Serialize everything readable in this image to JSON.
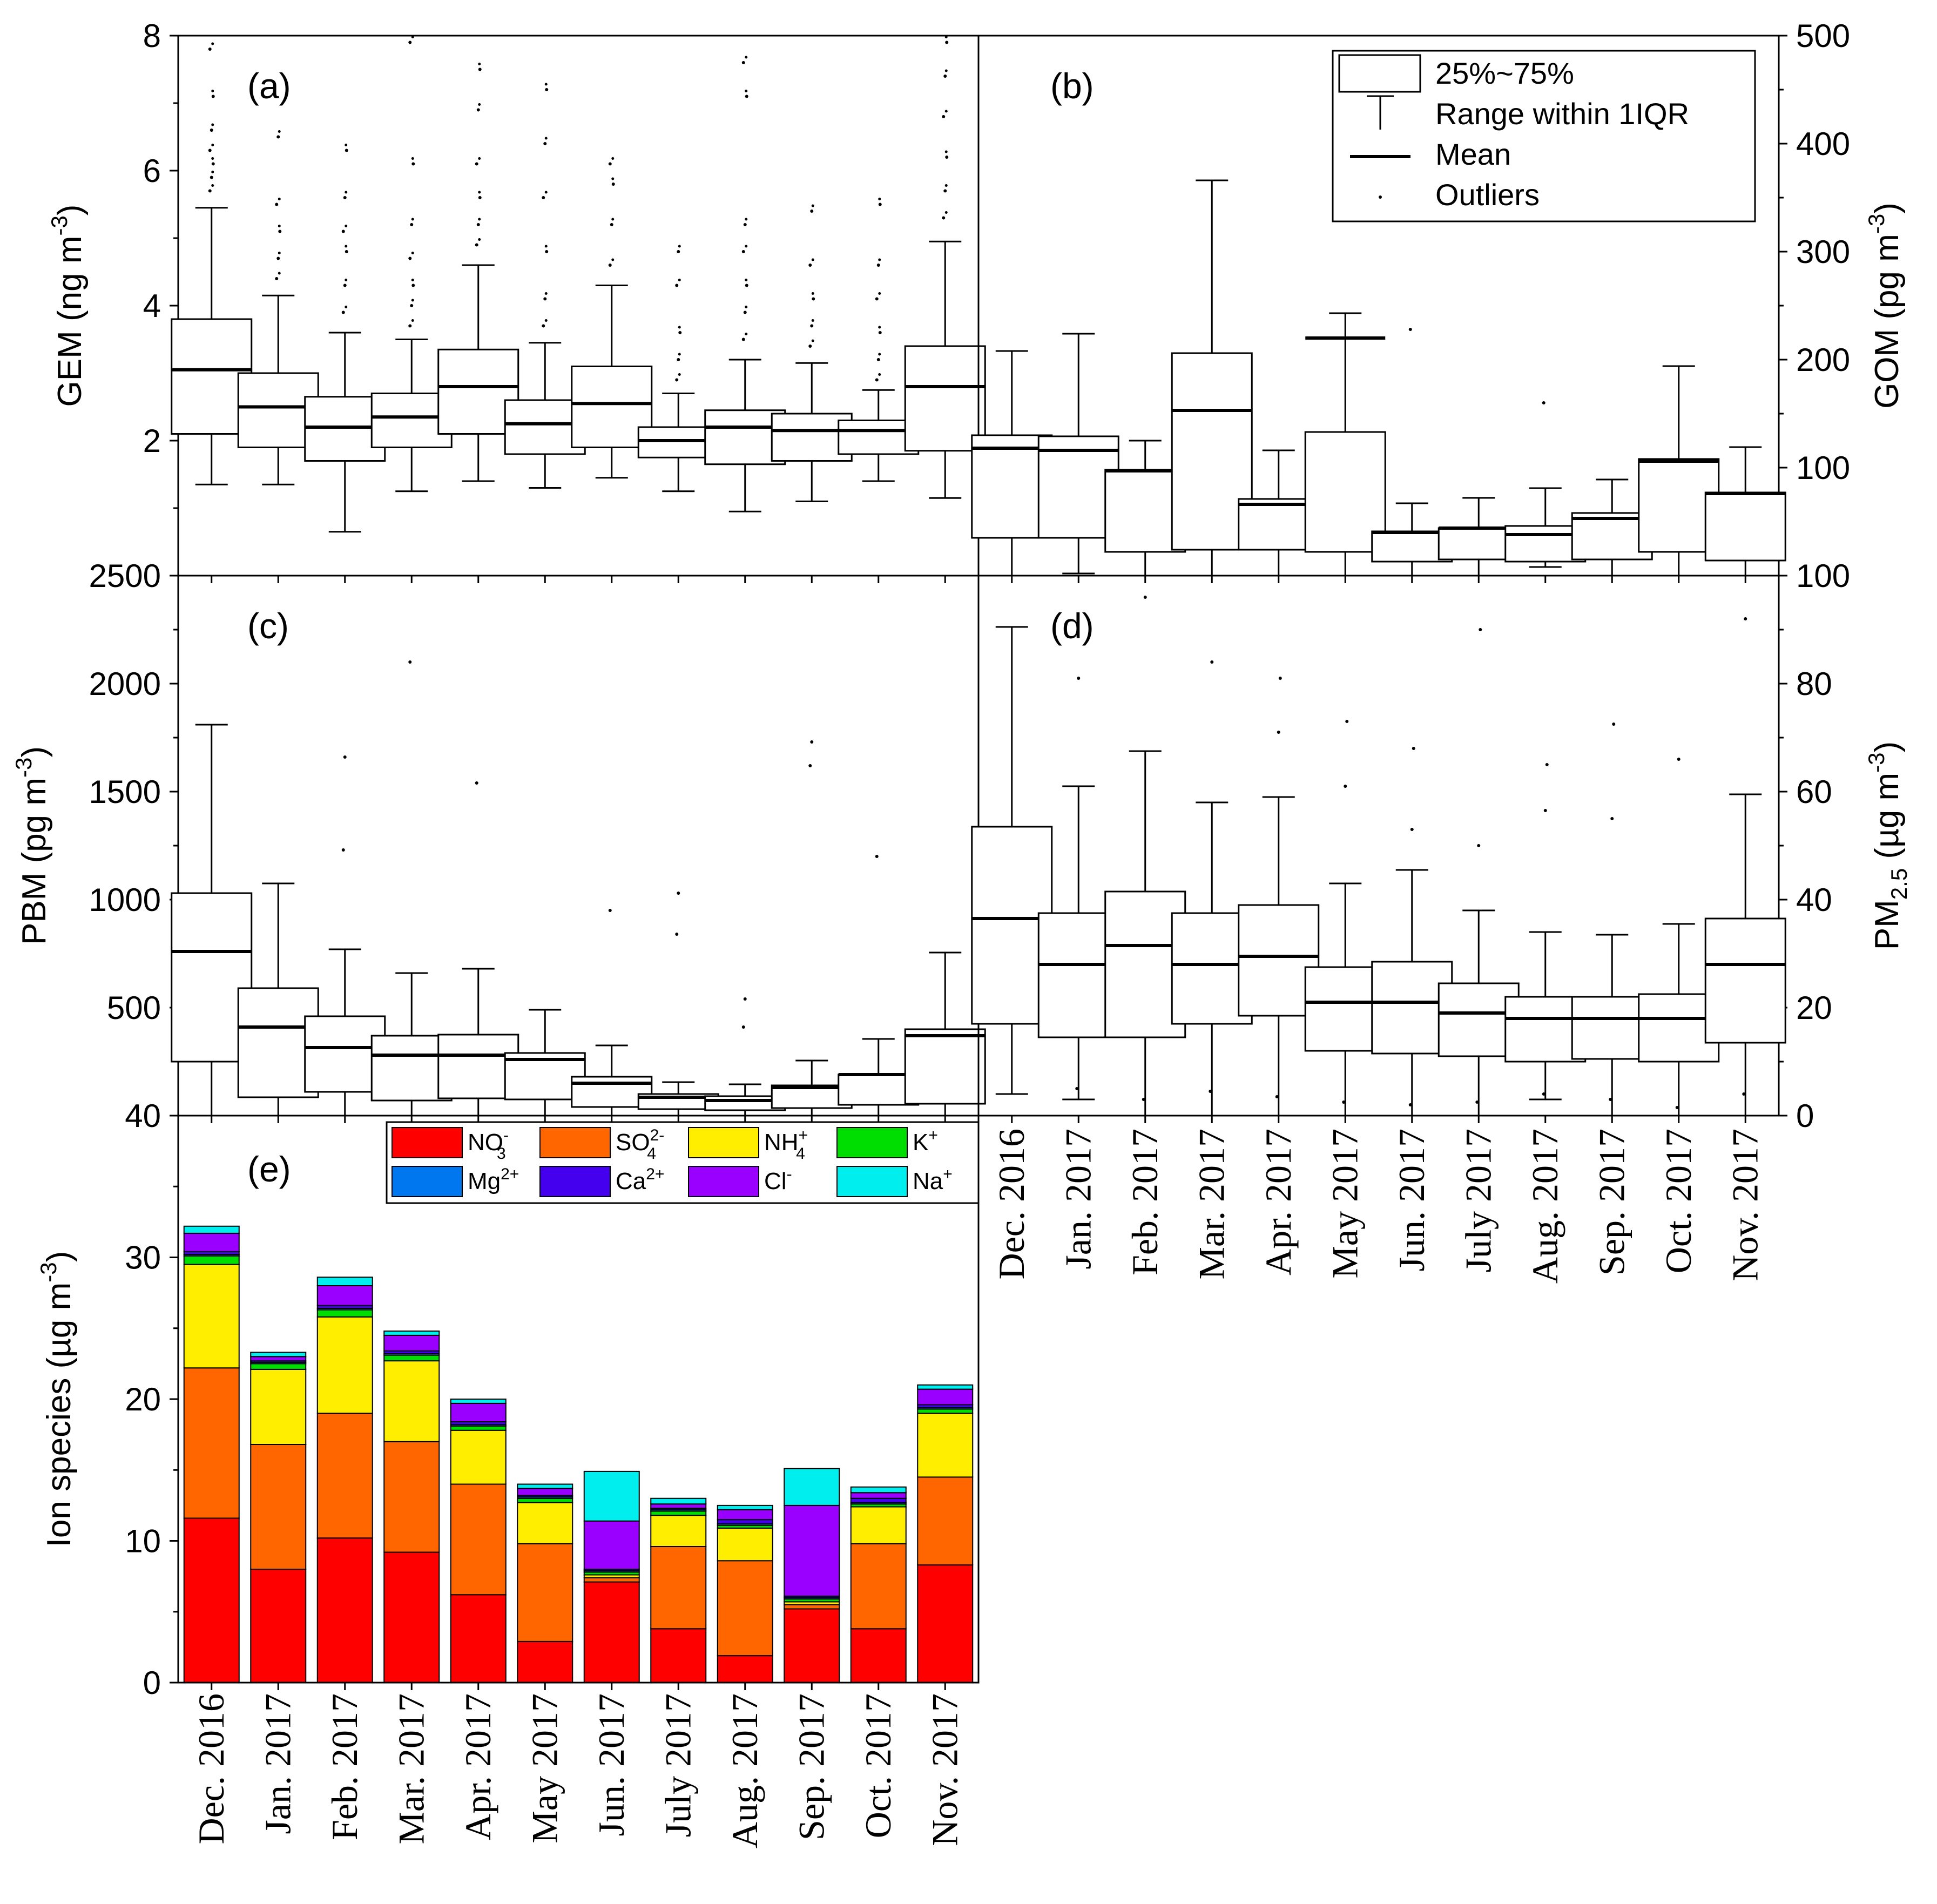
{
  "months": [
    "Dec. 2016",
    "Jan. 2017",
    "Feb. 2017",
    "Mar. 2017",
    "Apr. 2017",
    "May 2017",
    "Jun. 2017",
    "July 2017",
    "Aug. 2017",
    "Sep. 2017",
    "Oct. 2017",
    "Nov. 2017"
  ],
  "legend_box": {
    "box": "25%~75%",
    "whisker": "Range within 1IQR",
    "mean": "Mean",
    "outliers": "Outliers"
  },
  "chart_data": [
    {
      "id": "a",
      "type": "box",
      "panel_label": "(a)",
      "ylabel": "GEM (ng m",
      "ylabel_sup": "-3",
      "ylabel_tail": ")",
      "ylim": [
        0,
        8
      ],
      "yticks": [
        2,
        4,
        6,
        8
      ],
      "tick_labels": [
        "2",
        "4",
        "6",
        "8"
      ],
      "boxes": [
        {
          "q1": 2.1,
          "q3": 3.8,
          "mean": 3.05,
          "lo": 1.35,
          "hi": 5.45,
          "out": [
            5.7,
            5.9,
            6.1,
            6.3,
            6.6,
            7.1,
            7.8
          ]
        },
        {
          "q1": 1.9,
          "q3": 3.0,
          "mean": 2.5,
          "lo": 1.35,
          "hi": 4.15,
          "out": [
            4.4,
            4.7,
            5.1,
            5.5,
            6.5
          ]
        },
        {
          "q1": 1.7,
          "q3": 2.65,
          "mean": 2.2,
          "lo": 0.65,
          "hi": 3.6,
          "out": [
            3.9,
            4.3,
            4.8,
            5.1,
            5.6,
            6.3
          ]
        },
        {
          "q1": 1.9,
          "q3": 2.7,
          "mean": 2.35,
          "lo": 1.25,
          "hi": 3.5,
          "out": [
            3.7,
            4.0,
            4.3,
            4.7,
            5.2,
            6.1,
            7.9
          ]
        },
        {
          "q1": 2.1,
          "q3": 3.35,
          "mean": 2.8,
          "lo": 1.4,
          "hi": 4.6,
          "out": [
            4.9,
            5.2,
            5.6,
            6.1,
            6.9,
            7.5
          ]
        },
        {
          "q1": 1.8,
          "q3": 2.6,
          "mean": 2.25,
          "lo": 1.3,
          "hi": 3.45,
          "out": [
            3.7,
            4.1,
            4.8,
            5.6,
            6.4,
            7.2
          ]
        },
        {
          "q1": 1.9,
          "q3": 3.1,
          "mean": 2.55,
          "lo": 1.45,
          "hi": 4.3,
          "out": [
            4.6,
            5.2,
            5.8,
            6.1
          ]
        },
        {
          "q1": 1.75,
          "q3": 2.2,
          "mean": 2.0,
          "lo": 1.25,
          "hi": 2.7,
          "out": [
            2.9,
            3.2,
            3.6,
            4.3,
            4.8
          ]
        },
        {
          "q1": 1.65,
          "q3": 2.45,
          "mean": 2.2,
          "lo": 0.95,
          "hi": 3.2,
          "out": [
            3.5,
            3.9,
            4.3,
            4.8,
            5.2,
            7.1,
            7.6
          ]
        },
        {
          "q1": 1.7,
          "q3": 2.4,
          "mean": 2.15,
          "lo": 1.1,
          "hi": 3.15,
          "out": [
            3.4,
            3.7,
            4.1,
            4.6,
            5.4
          ]
        },
        {
          "q1": 1.8,
          "q3": 2.3,
          "mean": 2.15,
          "lo": 1.4,
          "hi": 2.75,
          "out": [
            2.9,
            3.2,
            3.6,
            4.1,
            4.6,
            5.5
          ]
        },
        {
          "q1": 1.85,
          "q3": 3.4,
          "mean": 2.8,
          "lo": 1.15,
          "hi": 4.95,
          "out": [
            5.3,
            5.7,
            6.2,
            6.8,
            7.4,
            7.9
          ]
        }
      ]
    },
    {
      "id": "b",
      "type": "box",
      "panel_label": "(b)",
      "ylabel": "GOM (pg m",
      "ylabel_sup": "-3",
      "ylabel_tail": ")",
      "ylim": [
        0,
        500
      ],
      "yticks": [
        100,
        200,
        300,
        400,
        500
      ],
      "tick_labels": [
        "100",
        "200",
        "300",
        "400",
        "500"
      ],
      "boxes": [
        {
          "q1": 35,
          "q3": 130,
          "mean": 118,
          "lo": 0,
          "hi": 208,
          "out": []
        },
        {
          "q1": 35,
          "q3": 129,
          "mean": 116,
          "lo": 2,
          "hi": 224,
          "out": []
        },
        {
          "q1": 22,
          "q3": 98,
          "mean": 97,
          "lo": 0,
          "hi": 125,
          "out": []
        },
        {
          "q1": 24,
          "q3": 206,
          "mean": 153,
          "lo": 0,
          "hi": 366,
          "out": []
        },
        {
          "q1": 24,
          "q3": 71,
          "mean": 66,
          "lo": 0,
          "hi": 116,
          "out": []
        },
        {
          "q1": 22,
          "q3": 133,
          "mean": 220,
          "lo": 0,
          "hi": 243,
          "out": []
        },
        {
          "q1": 13,
          "q3": 41,
          "mean": 40,
          "lo": 0,
          "hi": 67,
          "out": [
            228
          ]
        },
        {
          "q1": 15,
          "q3": 44,
          "mean": 44,
          "lo": 0,
          "hi": 72,
          "out": []
        },
        {
          "q1": 13,
          "q3": 46,
          "mean": 38,
          "lo": 8,
          "hi": 81,
          "out": [
            160
          ]
        },
        {
          "q1": 15,
          "q3": 58,
          "mean": 53,
          "lo": 0,
          "hi": 89,
          "out": []
        },
        {
          "q1": 22,
          "q3": 108,
          "mean": 106,
          "lo": 0,
          "hi": 194,
          "out": []
        },
        {
          "q1": 14,
          "q3": 77,
          "mean": 76,
          "lo": 0,
          "hi": 119,
          "out": []
        }
      ]
    },
    {
      "id": "c",
      "type": "box",
      "panel_label": "(c)",
      "ylabel": "PBM (pg m",
      "ylabel_sup": "-3",
      "ylabel_tail": ")",
      "ylim": [
        0,
        2500
      ],
      "yticks": [
        500,
        1000,
        1500,
        2000,
        2500
      ],
      "tick_labels": [
        "500",
        "1000",
        "1500",
        "2000",
        "2500"
      ],
      "boxes": [
        {
          "q1": 250,
          "q3": 1030,
          "mean": 760,
          "lo": 0,
          "hi": 1810,
          "out": []
        },
        {
          "q1": 85,
          "q3": 590,
          "mean": 410,
          "lo": 0,
          "hi": 1075,
          "out": []
        },
        {
          "q1": 110,
          "q3": 460,
          "mean": 315,
          "lo": 0,
          "hi": 770,
          "out": [
            1230,
            1660
          ]
        },
        {
          "q1": 70,
          "q3": 370,
          "mean": 280,
          "lo": 0,
          "hi": 660,
          "out": [
            2100
          ]
        },
        {
          "q1": 80,
          "q3": 375,
          "mean": 280,
          "lo": 0,
          "hi": 680,
          "out": [
            1540
          ]
        },
        {
          "q1": 75,
          "q3": 290,
          "mean": 260,
          "lo": 0,
          "hi": 490,
          "out": []
        },
        {
          "q1": 40,
          "q3": 180,
          "mean": 150,
          "lo": 0,
          "hi": 325,
          "out": [
            950
          ]
        },
        {
          "q1": 30,
          "q3": 100,
          "mean": 85,
          "lo": 0,
          "hi": 155,
          "out": [
            840,
            1030
          ]
        },
        {
          "q1": 25,
          "q3": 90,
          "mean": 70,
          "lo": 0,
          "hi": 145,
          "out": [
            410,
            540
          ]
        },
        {
          "q1": 35,
          "q3": 140,
          "mean": 130,
          "lo": 0,
          "hi": 255,
          "out": [
            1620,
            1730
          ]
        },
        {
          "q1": 50,
          "q3": 190,
          "mean": 190,
          "lo": 0,
          "hi": 355,
          "out": [
            1200
          ]
        },
        {
          "q1": 55,
          "q3": 400,
          "mean": 370,
          "lo": 0,
          "hi": 755,
          "out": []
        }
      ]
    },
    {
      "id": "d",
      "type": "box",
      "panel_label": "(d)",
      "ylabel": "PM",
      "ylabel_sub": "2.5",
      "ylabel_tail": " (µg m",
      "ylabel_sup": "-3",
      "ylabel_end": ")",
      "ylim": [
        0,
        100
      ],
      "yticks": [
        0,
        20,
        40,
        60,
        80,
        100
      ],
      "tick_labels": [
        "0",
        "20",
        "40",
        "60",
        "80",
        "100"
      ],
      "boxes": [
        {
          "q1": 17,
          "q3": 53.5,
          "mean": 36.5,
          "lo": 4,
          "hi": 90.5,
          "out": []
        },
        {
          "q1": 14.5,
          "q3": 37.5,
          "mean": 28,
          "lo": 3,
          "hi": 61,
          "out": [
            5,
            81
          ]
        },
        {
          "q1": 14.5,
          "q3": 41.5,
          "mean": 31.5,
          "lo": 0,
          "hi": 67.5,
          "out": [
            3,
            96
          ]
        },
        {
          "q1": 17,
          "q3": 37.5,
          "mean": 28,
          "lo": 0,
          "hi": 58,
          "out": [
            4.5,
            84
          ]
        },
        {
          "q1": 18.5,
          "q3": 39,
          "mean": 29.5,
          "lo": 0,
          "hi": 59,
          "out": [
            3.5,
            71,
            81
          ]
        },
        {
          "q1": 12,
          "q3": 27.5,
          "mean": 21,
          "lo": 0,
          "hi": 43,
          "out": [
            2.5,
            61,
            73
          ]
        },
        {
          "q1": 11.5,
          "q3": 28.5,
          "mean": 21,
          "lo": 0,
          "hi": 45.5,
          "out": [
            2,
            53,
            68
          ]
        },
        {
          "q1": 11,
          "q3": 24.5,
          "mean": 19,
          "lo": 0,
          "hi": 38,
          "out": [
            2.5,
            50,
            90
          ]
        },
        {
          "q1": 10,
          "q3": 22,
          "mean": 18,
          "lo": 3,
          "hi": 34,
          "out": [
            4,
            56.5,
            65
          ]
        },
        {
          "q1": 10.5,
          "q3": 22,
          "mean": 18,
          "lo": 0,
          "hi": 33.5,
          "out": [
            3,
            55,
            72.5
          ]
        },
        {
          "q1": 10,
          "q3": 22.5,
          "mean": 18,
          "lo": 0,
          "hi": 35.5,
          "out": [
            1.5,
            66
          ]
        },
        {
          "q1": 13.5,
          "q3": 36.5,
          "mean": 28,
          "lo": 0,
          "hi": 59.5,
          "out": [
            4,
            92
          ]
        }
      ]
    },
    {
      "id": "e",
      "type": "bar",
      "stacked": true,
      "panel_label": "(e)",
      "ylabel": "Ion species (µg m",
      "ylabel_sup": "-3",
      "ylabel_tail": ")",
      "ylim": [
        0,
        40
      ],
      "yticks": [
        0,
        10,
        20,
        30,
        40
      ],
      "tick_labels": [
        "0",
        "10",
        "20",
        "30",
        "40"
      ],
      "series": [
        {
          "name": "NO3-",
          "label_main": "NO",
          "label_sub": "3",
          "label_sup": "-",
          "color": "#ff0000",
          "values": [
            11.6,
            8.0,
            10.2,
            9.2,
            6.2,
            2.9,
            7.1,
            3.8,
            1.9,
            5.2,
            3.8,
            8.3
          ]
        },
        {
          "name": "SO42-",
          "label_main": "SO",
          "label_sub": "4",
          "label_sup": "2-",
          "color": "#ff6600",
          "values": [
            10.6,
            8.8,
            8.8,
            7.8,
            7.8,
            6.9,
            0.3,
            5.8,
            6.7,
            0.3,
            6.0,
            6.2
          ]
        },
        {
          "name": "NH4+",
          "label_main": "NH",
          "label_sub": "4",
          "label_sup": "+",
          "color": "#ffee00",
          "values": [
            7.3,
            5.3,
            6.8,
            5.7,
            3.8,
            2.9,
            0.2,
            2.2,
            2.3,
            0.2,
            2.6,
            4.5
          ]
        },
        {
          "name": "K+",
          "label_main": "K",
          "label_sub": "",
          "label_sup": "+",
          "color": "#00dd00",
          "values": [
            0.6,
            0.4,
            0.5,
            0.4,
            0.3,
            0.3,
            0.2,
            0.3,
            0.2,
            0.2,
            0.2,
            0.3
          ]
        },
        {
          "name": "Mg2+",
          "label_main": "Mg",
          "label_sub": "",
          "label_sup": "2+",
          "color": "#0077ee",
          "values": [
            0.1,
            0.1,
            0.1,
            0.1,
            0.1,
            0.1,
            0.1,
            0.1,
            0.1,
            0.1,
            0.1,
            0.1
          ]
        },
        {
          "name": "Ca2+",
          "label_main": "Ca",
          "label_sub": "",
          "label_sup": "2+",
          "color": "#4400ee",
          "values": [
            0.2,
            0.1,
            0.2,
            0.2,
            0.2,
            0.1,
            0.1,
            0.1,
            0.3,
            0.1,
            0.3,
            0.2
          ]
        },
        {
          "name": "Cl-",
          "label_main": "Cl",
          "label_sub": "",
          "label_sup": "-",
          "color": "#9900ff",
          "values": [
            1.3,
            0.3,
            1.4,
            1.1,
            1.3,
            0.5,
            3.4,
            0.3,
            0.7,
            6.4,
            0.4,
            1.1
          ]
        },
        {
          "name": "Na+",
          "label_main": "Na",
          "label_sub": "",
          "label_sup": "+",
          "color": "#00eeee",
          "values": [
            0.5,
            0.3,
            0.6,
            0.3,
            0.3,
            0.3,
            3.5,
            0.4,
            0.3,
            2.6,
            0.4,
            0.3
          ]
        }
      ]
    }
  ]
}
